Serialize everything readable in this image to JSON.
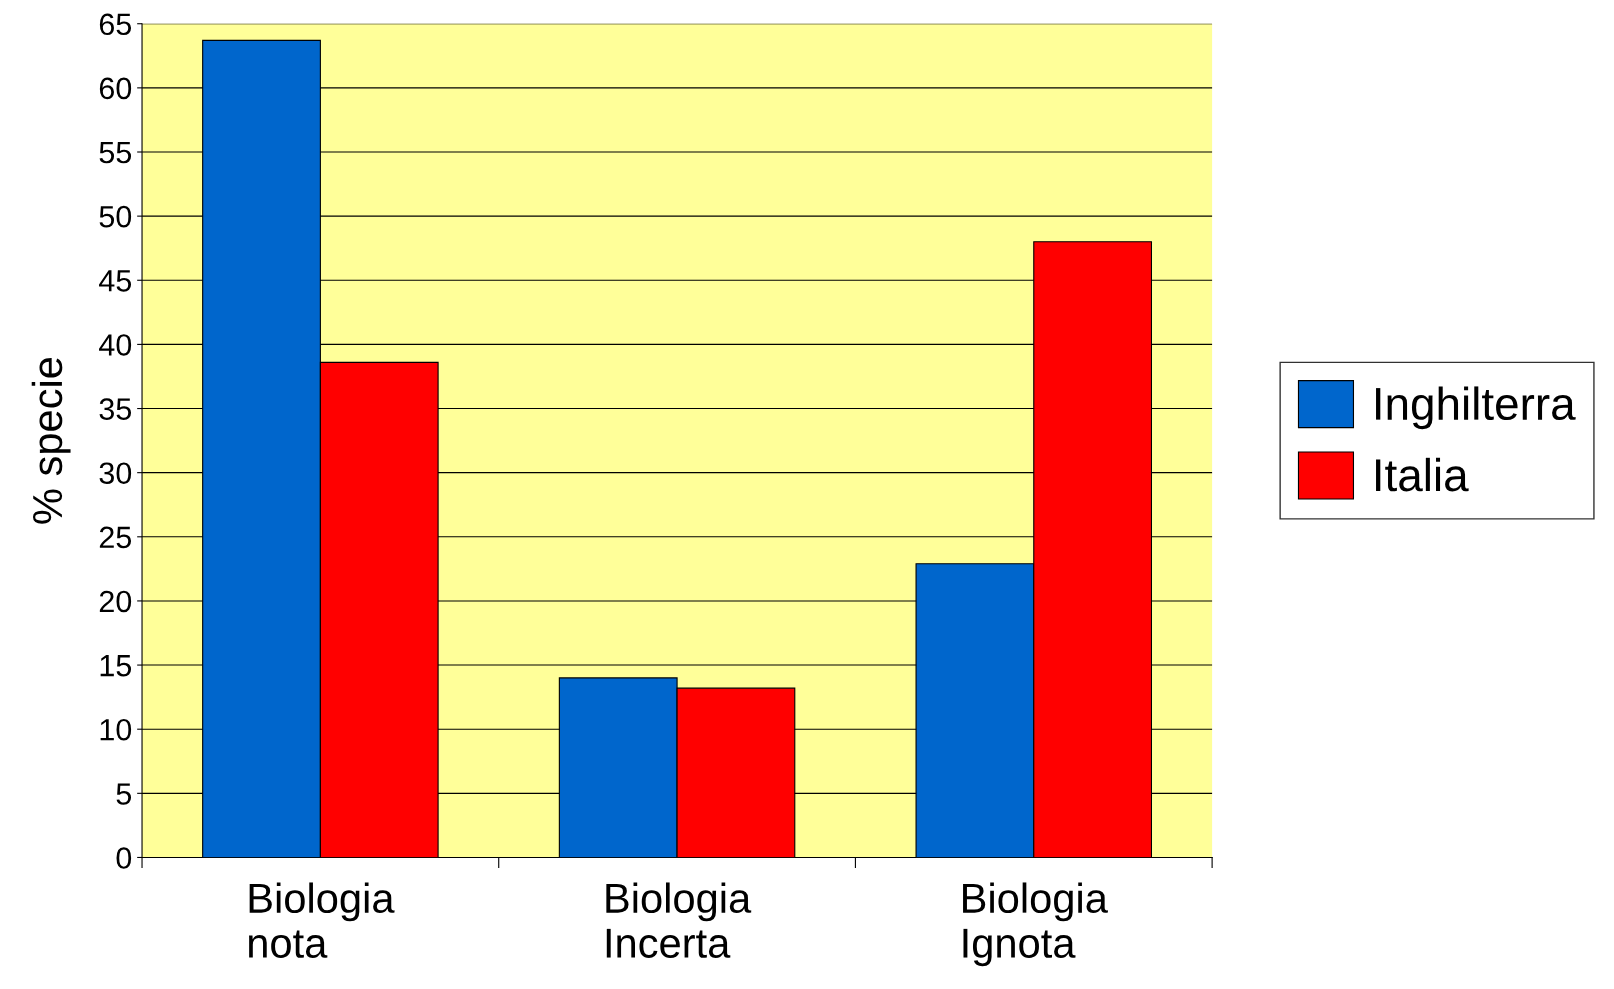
{
  "chart_data": {
    "type": "bar",
    "ylabel": "% specie",
    "categories": [
      "Biologia\nnota",
      "Biologia\nIncerta",
      "Biologia\nIgnota"
    ],
    "series": [
      {
        "name": "Inghilterra",
        "color": "#0066cc",
        "values": [
          63.7,
          14.0,
          22.9
        ]
      },
      {
        "name": "Italia",
        "color": "#ff0000",
        "values": [
          38.6,
          13.2,
          48.0
        ]
      }
    ],
    "ylim": [
      0,
      65
    ],
    "yticks": [
      0,
      5,
      10,
      15,
      20,
      25,
      30,
      35,
      40,
      45,
      50,
      55,
      60,
      65
    ],
    "grid": "y",
    "legend": "right"
  }
}
